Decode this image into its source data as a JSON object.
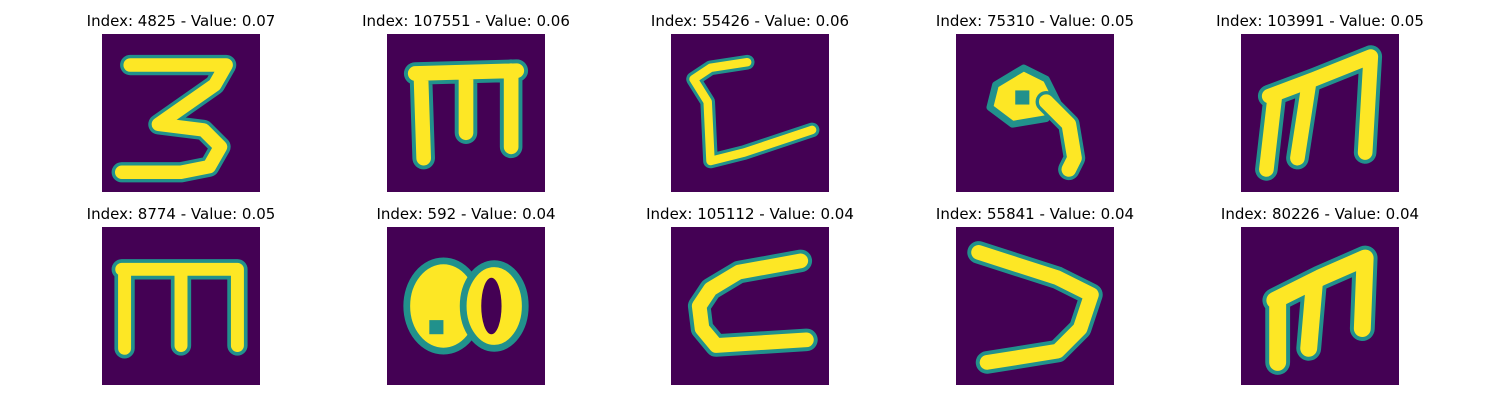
{
  "colors": {
    "background": "#440154",
    "stroke": "#fde725",
    "edge": "#21918c"
  },
  "panels": [
    {
      "title": "Index: 4825 - Value: 0.07",
      "glyph": "3"
    },
    {
      "title": "Index: 107551 - Value: 0.06",
      "glyph": "m-flat"
    },
    {
      "title": "Index: 55426 - Value: 0.06",
      "glyph": "c-tail"
    },
    {
      "title": "Index: 75310 - Value: 0.05",
      "glyph": "9"
    },
    {
      "title": "Index: 103991 - Value: 0.05",
      "glyph": "m-tilted"
    },
    {
      "title": "Index: 8774 - Value: 0.05",
      "glyph": "m-flat"
    },
    {
      "title": "Index: 592 - Value: 0.04",
      "glyph": "8-sideways"
    },
    {
      "title": "Index: 105112 - Value: 0.04",
      "glyph": "c-open"
    },
    {
      "title": "Index: 55841 - Value: 0.04",
      "glyph": "v-sideways"
    },
    {
      "title": "Index: 80226 - Value: 0.04",
      "glyph": "m-tilted"
    }
  ]
}
